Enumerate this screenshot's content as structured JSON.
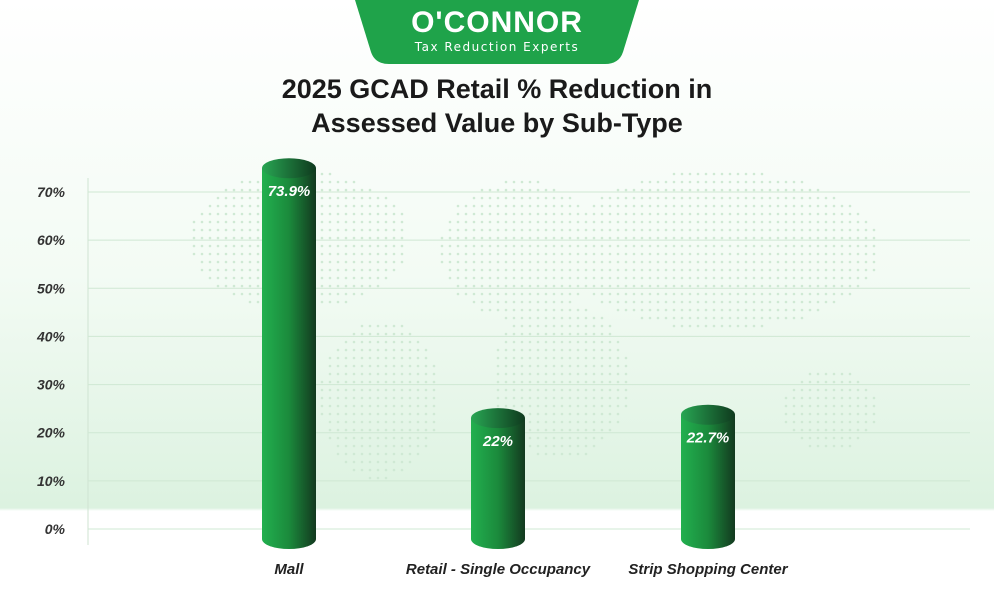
{
  "brand": {
    "name": "O'CONNOR",
    "tagline": "Tax Reduction Experts",
    "color": "#1fa34a"
  },
  "chart_data": {
    "type": "bar",
    "title_line1": "2025 GCAD Retail % Reduction in",
    "title_line2": "Assessed Value by Sub-Type",
    "categories": [
      "Mall",
      "Retail - Single Occupancy",
      "Strip Shopping Center"
    ],
    "values": [
      73.9,
      22,
      22.7
    ],
    "value_labels": [
      "73.9%",
      "22%",
      "22.7%"
    ],
    "y_ticks": [
      0,
      10,
      20,
      30,
      40,
      50,
      60,
      70
    ],
    "y_tick_labels": [
      "0%",
      "10%",
      "20%",
      "30%",
      "40%",
      "50%",
      "60%",
      "70%"
    ],
    "ylim": [
      0,
      70
    ],
    "grid": true,
    "bar_color": "#1fa34a",
    "xlabel": "",
    "ylabel": ""
  }
}
